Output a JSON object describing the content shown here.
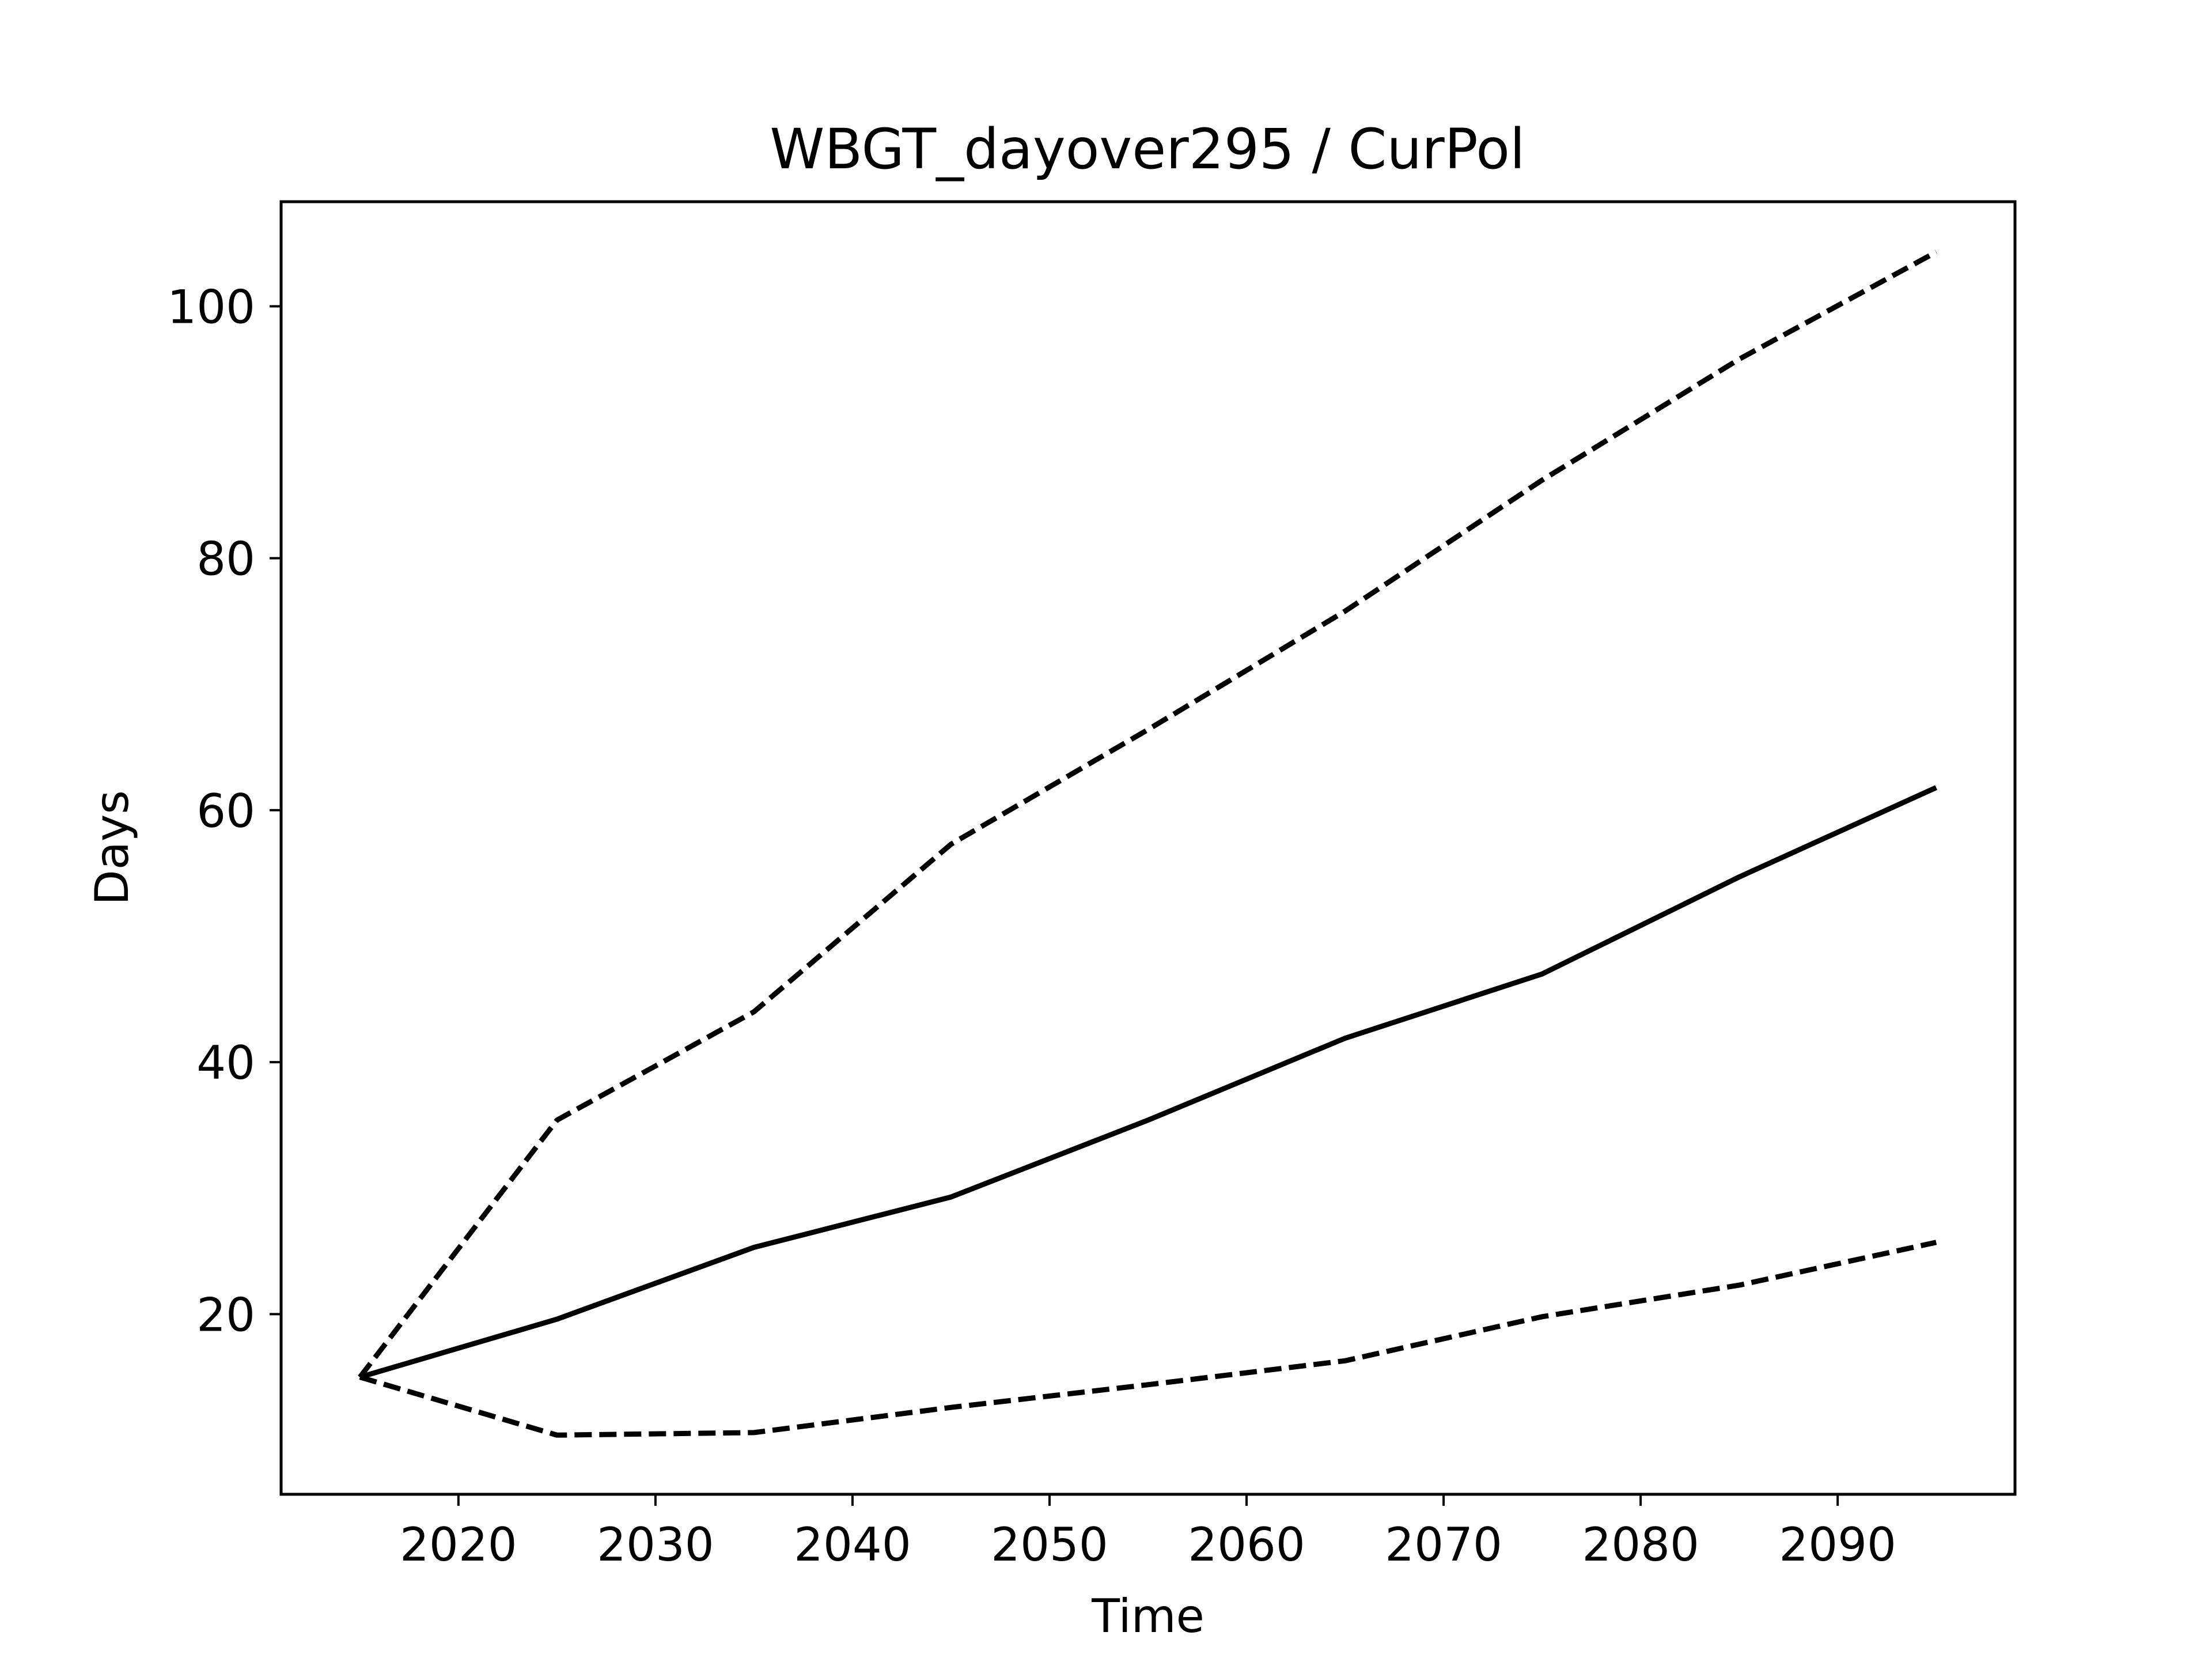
{
  "chart_data": {
    "type": "line",
    "title": "WBGT_dayover295 / CurPol",
    "xlabel": "Time",
    "ylabel": "Days",
    "xlim": [
      2011,
      2099
    ],
    "ylim": [
      5.7,
      108.3
    ],
    "xticks": [
      2020,
      2030,
      2040,
      2050,
      2060,
      2070,
      2080,
      2090
    ],
    "yticks": [
      20,
      40,
      60,
      80,
      100
    ],
    "grid": false,
    "x": [
      2015,
      2025,
      2035,
      2045,
      2055,
      2065,
      2075,
      2085,
      2095
    ],
    "series": [
      {
        "style": "dashed",
        "color": "#000000",
        "values": [
          15.0,
          35.4,
          44.0,
          57.3,
          66.4,
          75.8,
          86.2,
          95.8,
          104.3
        ]
      },
      {
        "style": "solid",
        "color": "#000000",
        "values": [
          15.0,
          19.6,
          25.3,
          29.3,
          35.4,
          41.9,
          47.0,
          54.7,
          61.8
        ]
      },
      {
        "style": "dashed",
        "color": "#000000",
        "values": [
          15.0,
          10.4,
          10.6,
          12.6,
          14.4,
          16.3,
          19.8,
          22.3,
          25.7
        ]
      }
    ]
  }
}
